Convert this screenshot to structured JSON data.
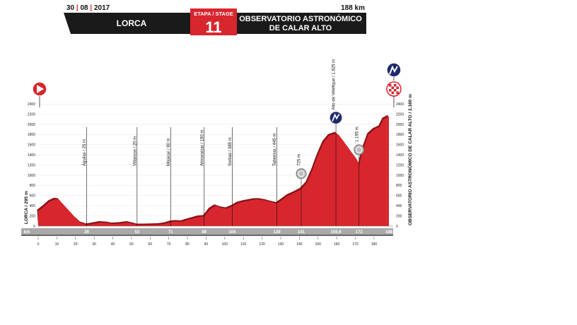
{
  "header": {
    "date": [
      "30",
      "08",
      "2017"
    ],
    "distance": "188 km",
    "start_town": "LORCA",
    "stage_label": "ETAPA / STAGE",
    "stage_number": "11",
    "finish_line1": "OBSERVATORIO ASTRONÓMICO",
    "finish_line2": "DE CALAR ALTO"
  },
  "colors": {
    "profile": "#d8262e",
    "band": "#1a1a1a",
    "stage_box": "#d8262e",
    "km_strip": "#a9a9a9"
  },
  "chart_data": {
    "type": "area",
    "title": "",
    "xlabel": "",
    "ylabel": "",
    "xlim": [
      0,
      188
    ],
    "ylim": [
      0,
      2500
    ],
    "y_ticks": [
      0,
      200,
      400,
      600,
      800,
      1000,
      1200,
      1400,
      1600,
      1800,
      2000,
      2200,
      2400
    ],
    "x_ticks": [
      0,
      10,
      20,
      30,
      40,
      50,
      60,
      70,
      80,
      90,
      100,
      110,
      120,
      130,
      140,
      150,
      160,
      170,
      180
    ],
    "km_strip_label": "km",
    "km_strip_values": [
      "26",
      "53",
      "71",
      "89",
      "104",
      "128",
      "141",
      "159,6",
      "172",
      "188"
    ],
    "start_label": "LORCA / 295 m",
    "finish_label": "OBSERVATORIO ASTRONÓMICO DE CALAR ALTO / 2.160 m",
    "start_icon": "start-arrow-icon",
    "finish_icons": [
      "mountain-category-icon",
      "finish-flag-icon"
    ],
    "profile": {
      "x": [
        0,
        3,
        6,
        9,
        11,
        14,
        17,
        20,
        23,
        26,
        29,
        33,
        37,
        40,
        44,
        48,
        52,
        53,
        57,
        61,
        65,
        68,
        71,
        74,
        77,
        80,
        83,
        86,
        89,
        92,
        95,
        98,
        101,
        104,
        107,
        110,
        113,
        116,
        119,
        122,
        125,
        128,
        131,
        134,
        137,
        141,
        144,
        147,
        150,
        153,
        156,
        159.6,
        162,
        165,
        168,
        171,
        172,
        174,
        177,
        180,
        183,
        185,
        188
      ],
      "y": [
        295,
        380,
        480,
        530,
        520,
        400,
        280,
        160,
        60,
        25,
        40,
        70,
        60,
        40,
        50,
        70,
        35,
        20,
        20,
        25,
        30,
        45,
        80,
        90,
        85,
        120,
        150,
        180,
        190,
        330,
        400,
        360,
        340,
        385,
        450,
        480,
        500,
        520,
        520,
        500,
        470,
        445,
        520,
        600,
        650,
        725,
        850,
        1100,
        1400,
        1650,
        1780,
        1825,
        1750,
        1600,
        1450,
        1300,
        1195,
        1500,
        1800,
        1900,
        1950,
        2100,
        2160
      ]
    },
    "points": [
      {
        "km": 26,
        "label": "Águilas / 25 m"
      },
      {
        "km": 53,
        "label": "Villaricos / 20 m"
      },
      {
        "km": 71,
        "label": "Mojácar / 80 m"
      },
      {
        "km": 89,
        "label": "Almocaizar / 190 m"
      },
      {
        "km": 104,
        "label": "Sorbas / 385 m"
      },
      {
        "km": 128,
        "label": "Tabernas / 445 m"
      },
      {
        "km": 141,
        "label": "725 m",
        "icon": "sprint-icon"
      },
      {
        "km": 159.6,
        "label": "Alto de Velefique / 1.825 m",
        "icon": "mountain-category-icon"
      },
      {
        "km": 172,
        "label": "1.195 m",
        "icon": "sprint-icon"
      }
    ]
  }
}
